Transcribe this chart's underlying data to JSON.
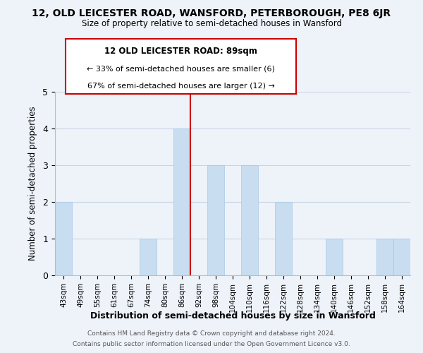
{
  "title": "12, OLD LEICESTER ROAD, WANSFORD, PETERBOROUGH, PE8 6JR",
  "subtitle": "Size of property relative to semi-detached houses in Wansford",
  "xlabel": "Distribution of semi-detached houses by size in Wansford",
  "ylabel": "Number of semi-detached properties",
  "footer_line1": "Contains HM Land Registry data © Crown copyright and database right 2024.",
  "footer_line2": "Contains public sector information licensed under the Open Government Licence v3.0.",
  "bin_labels": [
    "43sqm",
    "49sqm",
    "55sqm",
    "61sqm",
    "67sqm",
    "74sqm",
    "80sqm",
    "86sqm",
    "92sqm",
    "98sqm",
    "104sqm",
    "110sqm",
    "116sqm",
    "122sqm",
    "128sqm",
    "134sqm",
    "140sqm",
    "146sqm",
    "152sqm",
    "158sqm",
    "164sqm"
  ],
  "bar_heights": [
    2,
    0,
    0,
    0,
    0,
    1,
    0,
    4,
    0,
    3,
    0,
    3,
    0,
    2,
    0,
    0,
    1,
    0,
    0,
    1,
    1
  ],
  "bar_color": "#c8ddf0",
  "bar_edge_color": "#a8c8e8",
  "background_color": "#eef3fa",
  "property_line_x": 7.5,
  "property_line_color": "#cc0000",
  "annotation_title": "12 OLD LEICESTER ROAD: 89sqm",
  "annotation_line1": "← 33% of semi-detached houses are smaller (6)",
  "annotation_line2": "67% of semi-detached houses are larger (12) →",
  "annotation_box_edge": "#cc0000",
  "annotation_box_bg": "#ffffff",
  "ylim": [
    0,
    5
  ],
  "yticks": [
    0,
    1,
    2,
    3,
    4,
    5
  ]
}
